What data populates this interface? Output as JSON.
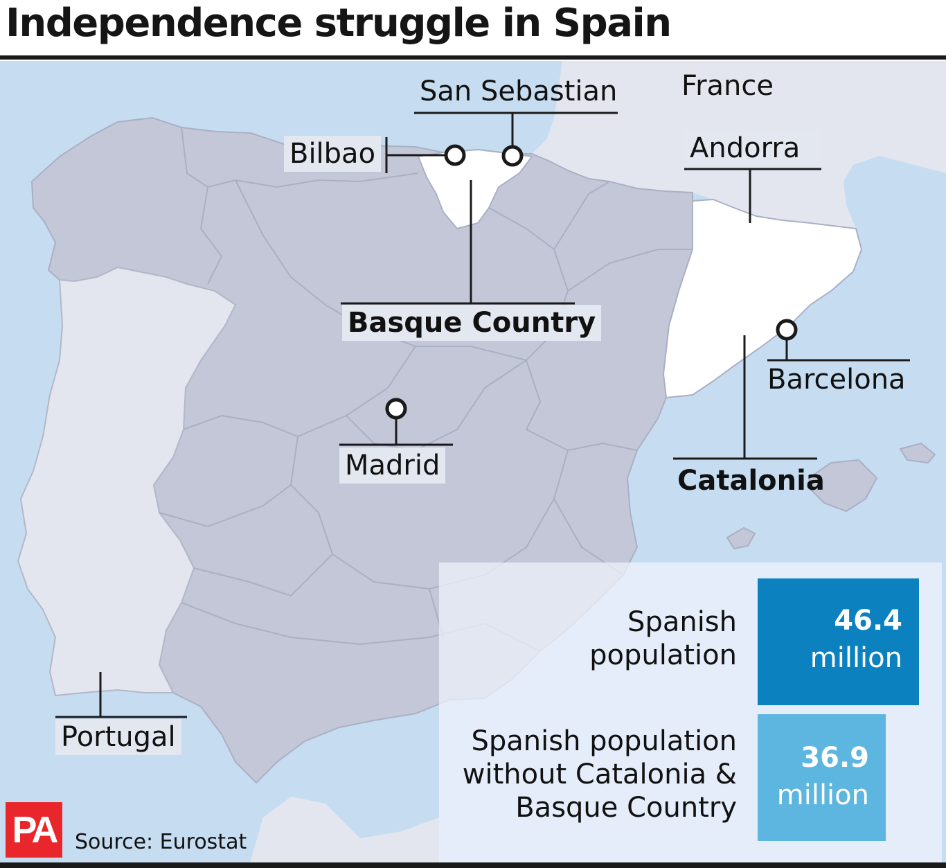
{
  "title": "Independence struggle in Spain",
  "colors": {
    "sea": "#c6dcf0",
    "spain_regions": "#c3c7d8",
    "neighbours": "#e3e6ee",
    "highlight_regions": "#ffffff",
    "dark_box": "#0b82bf",
    "light_box": "#5cb6e0",
    "brand": "#e8262b"
  },
  "map": {
    "country_labels": {
      "france": "France",
      "andorra": "Andorra",
      "portugal": "Portugal"
    },
    "city_labels": {
      "san_sebastian": "San Sebastian",
      "bilbao": "Bilbao",
      "madrid": "Madrid",
      "barcelona": "Barcelona"
    },
    "region_labels": {
      "basque_country": "Basque Country",
      "catalonia": "Catalonia"
    }
  },
  "stats": [
    {
      "label_lines": [
        "Spanish",
        "population"
      ],
      "value": "46.4",
      "unit": "million"
    },
    {
      "label_lines": [
        "Spanish population",
        "without Catalonia &",
        "Basque Country"
      ],
      "value": "36.9",
      "unit": "million"
    }
  ],
  "footer": {
    "logo": "PA",
    "source": "Source: Eurostat"
  }
}
